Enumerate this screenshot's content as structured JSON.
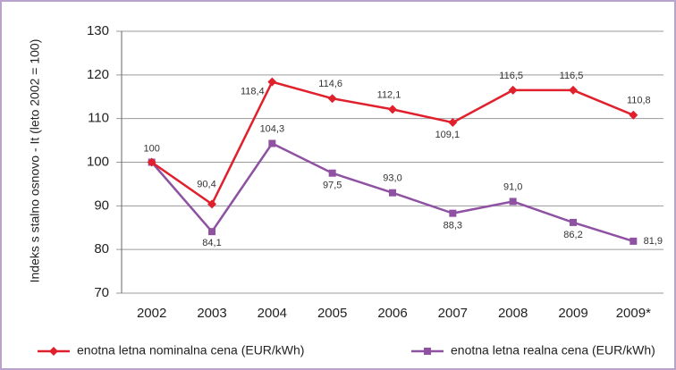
{
  "chart_data": {
    "type": "line",
    "y_label": "Indeks s stalno osnovo - It (leto 2002 = 100)",
    "categories": [
      "2002",
      "2003",
      "2004",
      "2005",
      "2006",
      "2007",
      "2008",
      "2009",
      "2009*"
    ],
    "series": [
      {
        "name": "enotna letna nominalna cena (EUR/kWh)",
        "color": "#e0202c",
        "marker": "diamond",
        "values": [
          100,
          90.4,
          118.4,
          114.6,
          112.1,
          109.1,
          116.5,
          116.5,
          110.8
        ],
        "value_labels": [
          "100",
          "90,4",
          "118,4",
          "114,6",
          "112,1",
          "109,1",
          "116,5",
          "116,5",
          "110,8"
        ]
      },
      {
        "name": "enotna letna realna cena (EUR/kWh)",
        "color": "#8f52a3",
        "marker": "square",
        "values": [
          100,
          84.1,
          104.3,
          97.5,
          93.0,
          88.3,
          91.0,
          86.2,
          81.9
        ],
        "value_labels": [
          null,
          "84,1",
          "104,3",
          "97,5",
          "93,0",
          "88,3",
          "91,0",
          "86,2",
          "81,9"
        ]
      }
    ],
    "ylim": [
      70,
      130
    ],
    "yticks": [
      70,
      80,
      90,
      100,
      110,
      120,
      130
    ],
    "grid": true,
    "legend": "bottom"
  }
}
